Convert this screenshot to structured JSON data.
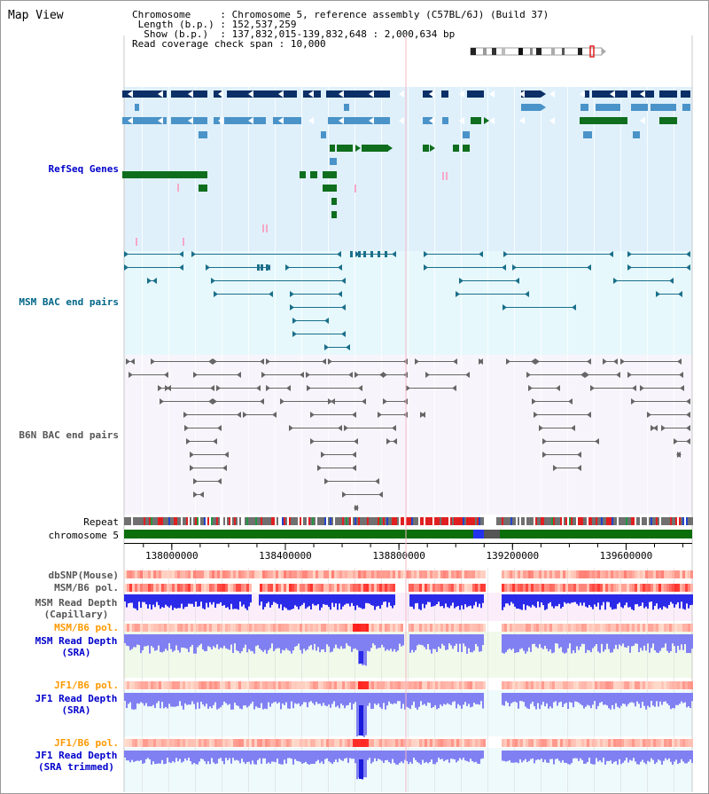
{
  "header": {
    "view_title": "Map View",
    "info_rows": [
      {
        "key": "Chromosome    ",
        "value": "Chromosome 5, reference assembly (C57BL/6J) (Build 37)"
      },
      {
        "key": " Length (b.p.)",
        "value": "152,537,259"
      },
      {
        "key": "  Show (b.p.) ",
        "value": "137,832,015-139,832,648 : 2,000,634 bp"
      },
      {
        "key": "Read coverage check span",
        "value": "10,000"
      }
    ]
  },
  "tracks": {
    "refseq": {
      "label": "RefSeq Genes",
      "color": "#0000cc",
      "bg": "#dff0fb"
    },
    "msm_bac": {
      "label": "MSM BAC end pairs",
      "color": "#006688",
      "bg": "#e6f8fc"
    },
    "b6n_bac": {
      "label": "B6N BAC end pairs",
      "color": "#555555",
      "bg": "#f7f5fb"
    },
    "repeat": {
      "label": "Repeat"
    },
    "chromosome": {
      "label": "chromosome 5"
    },
    "dbsnp": {
      "label": "dbSNP(Mouse)",
      "color": "#555555"
    },
    "msm_b6_pol_cap": {
      "label": "MSM/B6 pol.",
      "color": "#555555"
    },
    "msm_depth_cap": {
      "label": "MSM Read Depth\n(Capillary)",
      "color": "#555555"
    },
    "msm_b6_pol_sra": {
      "label": "MSM/B6 pol.",
      "color": "#ff9900"
    },
    "msm_depth_sra": {
      "label": "MSM Read Depth\n(SRA)",
      "color": "#0000cc"
    },
    "jf1_b6_pol_sra": {
      "label": "JF1/B6 pol.",
      "color": "#ff9900"
    },
    "jf1_depth_sra": {
      "label": "JF1 Read Depth\n(SRA)",
      "color": "#0000cc"
    },
    "jf1_b6_pol_trim": {
      "label": "JF1/B6 pol.",
      "color": "#ff9900"
    },
    "jf1_depth_trim": {
      "label": "JF1 Read Depth\n(SRA trimmed)",
      "color": "#0000cc"
    }
  },
  "axis": {
    "tick_labels": [
      "138000000",
      "138400000",
      "138800000",
      "139200000",
      "139600000"
    ],
    "tick_values": [
      138000000,
      138400000,
      138800000,
      139200000,
      139600000
    ],
    "view_start": 137832015,
    "view_end": 139832648
  },
  "colors": {
    "gene_dark": "#0b2f66",
    "gene_mid": "#4a93c8",
    "gene_green": "#0f6e1e",
    "gene_pink": "#f7a8c8",
    "msm_pair": "#1a6f8a",
    "b6n_pair": "#666666",
    "chrom_bar": "#0b6e0b",
    "depth_dark": "#2a2ae8",
    "depth_light": "#8080f2",
    "pol_red": "#ff3333",
    "pol_light": "#ffc8c0"
  }
}
